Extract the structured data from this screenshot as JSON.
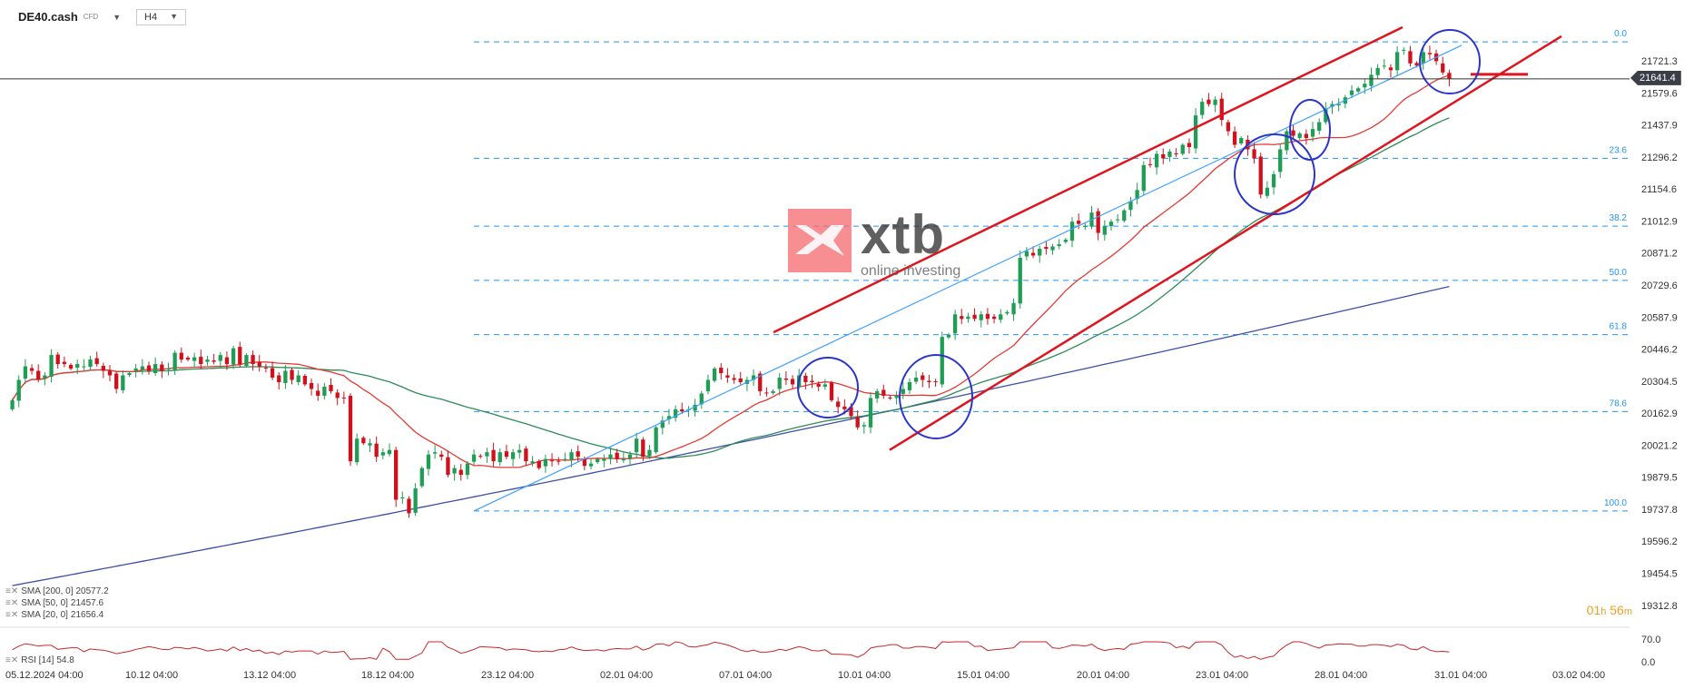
{
  "header": {
    "symbol": "DE40.cash",
    "symbol_sub": "CFD",
    "timeframe": "H4"
  },
  "watermark": {
    "brand": "xtb",
    "tagline": "online investing"
  },
  "current_price": "21641.4",
  "timer": {
    "hours": "01",
    "h": "h",
    "minutes": "56",
    "m": "m"
  },
  "indicators": [
    {
      "label": "SMA [200, 0]",
      "value": "20577.2",
      "color": "#3f4ea8"
    },
    {
      "label": "SMA [50, 0]",
      "value": "21457.6",
      "color": "#2e8b57"
    },
    {
      "label": "SMA [20, 0]",
      "value": "21656.4",
      "color": "#e53935"
    }
  ],
  "rsi": {
    "label": "RSI [14]",
    "value": "54.8",
    "levels": [
      "70.0",
      "0.0"
    ]
  },
  "colors": {
    "up": "#1f9d55",
    "down": "#d0111b",
    "channel": "#e0141e",
    "fib": "#2196f3",
    "trend": "#3fa0ff",
    "circle": "#2b35c9"
  },
  "chart_data": {
    "type": "candlestick",
    "y_ticks": [
      "21721.3",
      "21579.6",
      "21437.9",
      "21296.2",
      "21154.6",
      "21012.9",
      "20871.2",
      "20729.6",
      "20587.9",
      "20446.2",
      "20304.5",
      "20162.9",
      "20021.2",
      "19879.5",
      "19737.8",
      "19596.2",
      "19454.5",
      "19312.8"
    ],
    "ylim": [
      19300,
      21870
    ],
    "x_ticks": [
      "05.12.2024 04:00",
      "10.12 04:00",
      "13.12 04:00",
      "18.12 04:00",
      "23.12 04:00",
      "02.01 04:00",
      "07.01 04:00",
      "10.01 04:00",
      "15.01 04:00",
      "20.01 04:00",
      "23.01 04:00",
      "28.01 04:00",
      "31.01 04:00",
      "03.02 04:00"
    ],
    "fib_levels": [
      {
        "label": "0.0",
        "price": 21805
      },
      {
        "label": "23.6",
        "price": 21290
      },
      {
        "label": "38.2",
        "price": 20990
      },
      {
        "label": "50.0",
        "price": 20750
      },
      {
        "label": "61.8",
        "price": 20510
      },
      {
        "label": "78.6",
        "price": 20170
      },
      {
        "label": "100.0",
        "price": 19730
      }
    ],
    "closes": [
      20220,
      20310,
      20370,
      20350,
      20310,
      20330,
      20420,
      20380,
      20380,
      20360,
      20380,
      20370,
      20400,
      20380,
      20350,
      20330,
      20270,
      20330,
      20340,
      20360,
      20370,
      20350,
      20380,
      20350,
      20360,
      20430,
      20400,
      20400,
      20410,
      20380,
      20400,
      20390,
      20420,
      20380,
      20450,
      20380,
      20420,
      20380,
      20370,
      20360,
      20320,
      20300,
      20350,
      20310,
      20330,
      20290,
      20270,
      20240,
      20280,
      20260,
      20230,
      20230,
      19950,
      20050,
      20030,
      20030,
      19970,
      19990,
      20000,
      19780,
      19790,
      19720,
      19830,
      19920,
      19980,
      19990,
      19970,
      19890,
      19920,
      19890,
      19940,
      19980,
      19970,
      19990,
      19950,
      19990,
      19970,
      19990,
      20000,
      19950,
      19950,
      19920,
      19960,
      19950,
      19950,
      19960,
      19990,
      19970,
      19930,
      19940,
      19960,
      19960,
      19980,
      19960,
      19960,
      19980,
      20050,
      19970,
      20000,
      20100,
      20130,
      20150,
      20180,
      20170,
      20180,
      20200,
      20250,
      20310,
      20360,
      20340,
      20320,
      20310,
      20300,
      20310,
      20330,
      20260,
      20250,
      20260,
      20320,
      20310,
      20290,
      20330,
      20300,
      20300,
      20280,
      20290,
      20220,
      20190,
      20180,
      20150,
      20100,
      20110,
      20230,
      20260,
      20240,
      20230,
      20240,
      20270,
      20300,
      20320,
      20310,
      20300,
      20300,
      20500,
      20510,
      20600,
      20580,
      20590,
      20580,
      20600,
      20580,
      20580,
      20600,
      20610,
      20650,
      20850,
      20880,
      20860,
      20890,
      20890,
      20900,
      20910,
      20930,
      21010,
      21000,
      20990,
      21050,
      20960,
      20990,
      21010,
      21020,
      21060,
      21100,
      21150,
      21260,
      21260,
      21310,
      21290,
      21320,
      21310,
      21350,
      21340,
      21480,
      21540,
      21530,
      21550,
      21460,
      21410,
      21350,
      21380,
      21330,
      21290,
      21130,
      21160,
      21220,
      21330,
      21410,
      21390,
      21400,
      21380,
      21420,
      21450,
      21510,
      21530,
      21530,
      21560,
      21590,
      21600,
      21620,
      21660,
      21690,
      21700,
      21680,
      21760,
      21770,
      21710,
      21700,
      21760,
      21750,
      21720,
      21670,
      21641
    ]
  }
}
